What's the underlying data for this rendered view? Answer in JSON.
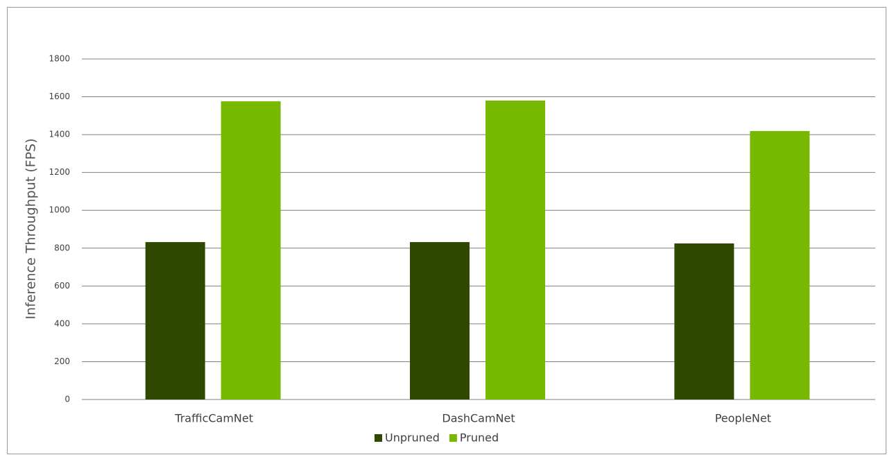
{
  "chart_data": {
    "type": "bar",
    "y_label": "Inference Throughput (FPS)",
    "categories": [
      "TrafficCamNet",
      "DashCamNet",
      "PeopleNet"
    ],
    "series": [
      {
        "name": "Unpruned",
        "color": "#2f4a00",
        "values": [
          832,
          832,
          825
        ]
      },
      {
        "name": "Pruned",
        "color": "#76b900",
        "values": [
          1576,
          1580,
          1419
        ]
      }
    ],
    "ylim": [
      0,
      1800
    ],
    "yticks": [
      0,
      200,
      400,
      600,
      800,
      1000,
      1200,
      1400,
      1600,
      1800
    ],
    "grid": true,
    "legend": "bottom"
  }
}
